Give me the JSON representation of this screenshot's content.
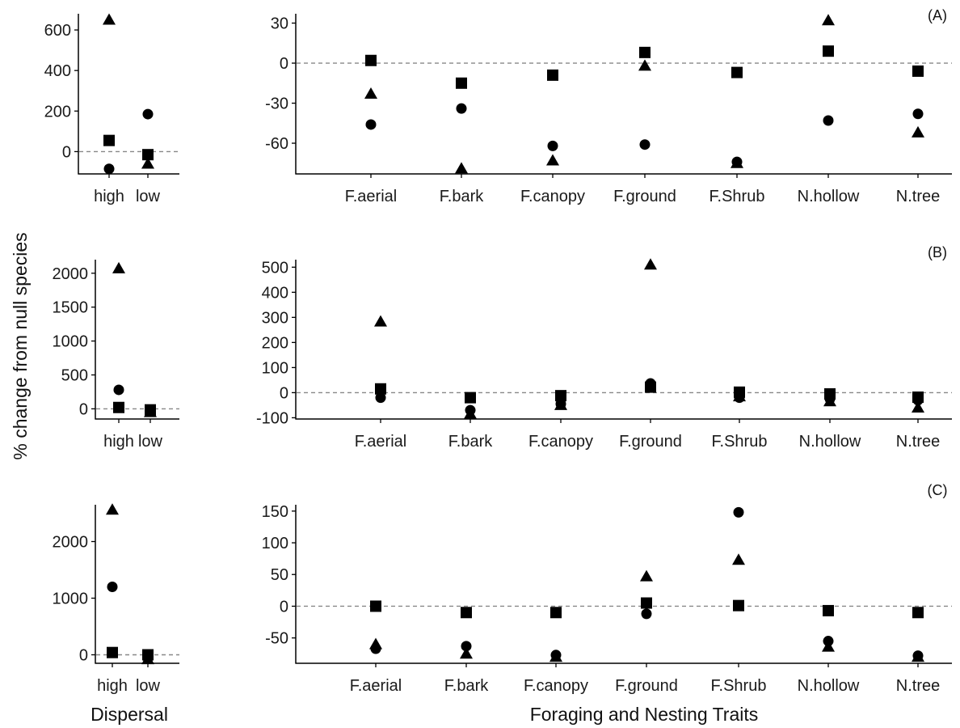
{
  "axis_titles": {
    "y": "% change from null species",
    "x_left": "Dispersal",
    "x_right": "Foraging and Nesting Traits"
  },
  "colors": {
    "marker": "#000000",
    "reference_line": "#888888",
    "axis": "#000000"
  },
  "marker_shapes": [
    "triangle",
    "square",
    "circle"
  ],
  "chart_data": [
    {
      "panel": "A-left",
      "type": "scatter",
      "xlabel": "",
      "categories": [
        "high",
        "low"
      ],
      "ylim": [
        -110,
        680
      ],
      "yticks": [
        0,
        200,
        400,
        600
      ],
      "reference_line": 0,
      "series": [
        {
          "marker": "triangle",
          "values": [
            650,
            -60
          ]
        },
        {
          "marker": "square",
          "values": [
            55,
            -15
          ]
        },
        {
          "marker": "circle",
          "values": [
            -85,
            185
          ]
        }
      ]
    },
    {
      "panel": "A-right",
      "type": "scatter",
      "tag": "(A)",
      "categories": [
        "F.aerial",
        "F.bark",
        "F.canopy",
        "F.ground",
        "F.Shrub",
        "N.hollow",
        "N.tree"
      ],
      "ylim": [
        -83,
        37
      ],
      "yticks": [
        -60,
        -30,
        0,
        30
      ],
      "reference_line": 0,
      "series": [
        {
          "marker": "triangle",
          "values": [
            -23,
            -79,
            -73,
            -2,
            -75,
            32,
            -52
          ]
        },
        {
          "marker": "square",
          "values": [
            2,
            -15,
            -9,
            8,
            -7,
            9,
            -6
          ]
        },
        {
          "marker": "circle",
          "values": [
            -46,
            -34,
            -62,
            -61,
            -74,
            -43,
            -38
          ]
        }
      ]
    },
    {
      "panel": "B-left",
      "type": "scatter",
      "xlabel": "",
      "categories": [
        "high",
        "low"
      ],
      "ylim": [
        -150,
        2200
      ],
      "yticks": [
        0,
        500,
        1000,
        1500,
        2000
      ],
      "reference_line": 0,
      "series": [
        {
          "marker": "triangle",
          "values": [
            2070,
            -50
          ]
        },
        {
          "marker": "square",
          "values": [
            20,
            -15
          ]
        },
        {
          "marker": "circle",
          "values": [
            280,
            -40
          ]
        }
      ]
    },
    {
      "panel": "B-right",
      "type": "scatter",
      "tag": "(B)",
      "categories": [
        "F.aerial",
        "F.bark",
        "F.canopy",
        "F.ground",
        "F.Shrub",
        "N.hollow",
        "N.tree"
      ],
      "ylim": [
        -105,
        530
      ],
      "yticks": [
        -100,
        0,
        100,
        200,
        300,
        400,
        500
      ],
      "reference_line": 0,
      "series": [
        {
          "marker": "triangle",
          "values": [
            283,
            -85,
            -50,
            510,
            -15,
            -35,
            -60
          ]
        },
        {
          "marker": "square",
          "values": [
            15,
            -20,
            -12,
            22,
            2,
            -5,
            -18
          ]
        },
        {
          "marker": "circle",
          "values": [
            -20,
            -70,
            -45,
            37,
            -20,
            -25,
            -30
          ]
        }
      ]
    },
    {
      "panel": "C-left",
      "type": "scatter",
      "xlabel": "",
      "categories": [
        "high",
        "low"
      ],
      "ylim": [
        -150,
        2650
      ],
      "yticks": [
        0,
        1000,
        2000
      ],
      "reference_line": 0,
      "series": [
        {
          "marker": "triangle",
          "values": [
            2560,
            -80
          ]
        },
        {
          "marker": "square",
          "values": [
            40,
            0
          ]
        },
        {
          "marker": "circle",
          "values": [
            1200,
            -60
          ]
        }
      ]
    },
    {
      "panel": "C-right",
      "type": "scatter",
      "tag": "(C)",
      "categories": [
        "F.aerial",
        "F.bark",
        "F.canopy",
        "F.ground",
        "F.Shrub",
        "N.hollow",
        "N.tree"
      ],
      "ylim": [
        -90,
        160
      ],
      "yticks": [
        -50,
        0,
        50,
        100,
        150
      ],
      "reference_line": 0,
      "series": [
        {
          "marker": "triangle",
          "values": [
            -60,
            -75,
            -80,
            47,
            73,
            -64,
            -80
          ]
        },
        {
          "marker": "square",
          "values": [
            0,
            -10,
            -10,
            5,
            1,
            -7,
            -10
          ]
        },
        {
          "marker": "circle",
          "values": [
            -67,
            -63,
            -77,
            -12,
            148,
            -55,
            -78
          ]
        }
      ]
    }
  ]
}
